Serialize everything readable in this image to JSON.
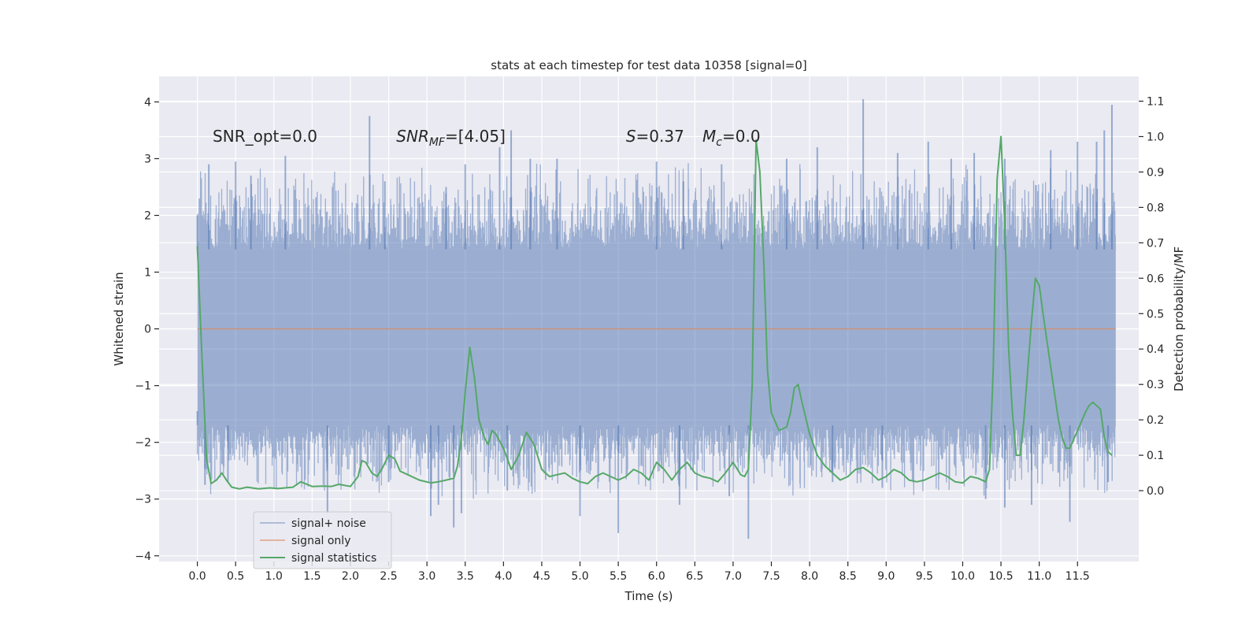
{
  "chart_data": {
    "type": "line",
    "title": "stats at each timestep for test data 10358 [signal=0]",
    "xlabel": "Time (s)",
    "ylabel": "Whitened strain",
    "ylabel_right": "Detection probability/MF",
    "xlim": [
      -0.5,
      12.3
    ],
    "ylim": [
      -4.1,
      4.45
    ],
    "ylim_right": [
      -0.2,
      1.17
    ],
    "x_ticks": [
      0.0,
      0.5,
      1.0,
      1.5,
      2.0,
      2.5,
      3.0,
      3.5,
      4.0,
      4.5,
      5.0,
      5.5,
      6.0,
      6.5,
      7.0,
      7.5,
      8.0,
      8.5,
      9.0,
      9.5,
      10.0,
      10.5,
      11.0,
      11.5
    ],
    "x_tick_labels": [
      "0.0",
      "0.5",
      "1.0",
      "1.5",
      "2.0",
      "2.5",
      "3.0",
      "3.5",
      "4.0",
      "4.5",
      "5.0",
      "5.5",
      "6.0",
      "6.5",
      "7.0",
      "7.5",
      "8.0",
      "8.5",
      "9.0",
      "9.5",
      "10.0",
      "10.5",
      "11.0",
      "11.5"
    ],
    "y_ticks": [
      -4,
      -3,
      -2,
      -1,
      0,
      1,
      2,
      3,
      4
    ],
    "y_tick_labels": [
      "−4",
      "−3",
      "−2",
      "−1",
      "0",
      "1",
      "2",
      "3",
      "4"
    ],
    "y_ticks_right": [
      0.0,
      0.1,
      0.2,
      0.3,
      0.4,
      0.5,
      0.6,
      0.7,
      0.8,
      0.9,
      1.0,
      1.1
    ],
    "y_tick_labels_right": [
      "0.0",
      "0.1",
      "0.2",
      "0.3",
      "0.4",
      "0.5",
      "0.6",
      "0.7",
      "0.8",
      "0.9",
      "1.0",
      "1.1"
    ],
    "grid": true,
    "legend_position": "lower-left",
    "annotations": [
      {
        "text": "SNR_opt=0.0",
        "x": 0.2,
        "y": 3.3
      },
      {
        "text": "SNR",
        "sub": "MF",
        "rest": "=[4.05]",
        "italic": true,
        "x": 2.6,
        "y": 3.3
      },
      {
        "text": "S",
        "rest": "=0.37",
        "italic": true,
        "x": 5.6,
        "y": 3.3
      },
      {
        "text": "M",
        "sub": "c",
        "rest": "=0.0",
        "italic": true,
        "x": 6.6,
        "y": 3.3
      }
    ],
    "series": [
      {
        "name": "signal+ noise",
        "color": "#4c72b0",
        "opacity": 0.5,
        "axis": "left",
        "kind": "noise_band",
        "x_range": [
          0.0,
          12.0
        ],
        "core_range": [
          -1.7,
          1.4
        ],
        "peaks_up": [
          [
            0.0,
            2.0
          ],
          [
            0.15,
            2.9
          ],
          [
            0.5,
            2.95
          ],
          [
            0.7,
            2.7
          ],
          [
            1.15,
            3.05
          ],
          [
            2.25,
            3.75
          ],
          [
            2.45,
            2.6
          ],
          [
            3.25,
            2.5
          ],
          [
            3.5,
            2.9
          ],
          [
            3.95,
            3.2
          ],
          [
            4.1,
            3.5
          ],
          [
            4.35,
            3.0
          ],
          [
            4.7,
            3.0
          ],
          [
            6.0,
            2.95
          ],
          [
            6.35,
            2.6
          ],
          [
            6.85,
            2.9
          ],
          [
            7.7,
            3.0
          ],
          [
            8.1,
            3.2
          ],
          [
            8.7,
            4.05
          ],
          [
            9.15,
            3.1
          ],
          [
            9.55,
            3.3
          ],
          [
            9.85,
            3.0
          ],
          [
            10.15,
            3.1
          ],
          [
            10.55,
            3.0
          ],
          [
            11.15,
            3.15
          ],
          [
            11.5,
            3.3
          ],
          [
            11.75,
            3.3
          ],
          [
            11.85,
            3.5
          ],
          [
            11.95,
            3.95
          ]
        ],
        "peaks_down": [
          [
            0.0,
            -1.45
          ],
          [
            0.1,
            -2.75
          ],
          [
            0.4,
            -2.7
          ],
          [
            1.7,
            -3.25
          ],
          [
            2.5,
            -2.7
          ],
          [
            3.05,
            -3.3
          ],
          [
            3.15,
            -3.1
          ],
          [
            3.35,
            -3.5
          ],
          [
            3.45,
            -3.25
          ],
          [
            4.05,
            -2.85
          ],
          [
            5.0,
            -3.3
          ],
          [
            5.5,
            -3.6
          ],
          [
            6.3,
            -3.1
          ],
          [
            6.95,
            -2.95
          ],
          [
            7.2,
            -3.7
          ],
          [
            8.3,
            -2.7
          ],
          [
            8.95,
            -2.8
          ],
          [
            10.3,
            -3.0
          ],
          [
            10.55,
            -3.15
          ],
          [
            10.9,
            -3.1
          ],
          [
            11.4,
            -3.4
          ],
          [
            11.9,
            -2.7
          ]
        ]
      },
      {
        "name": "signal only",
        "color": "#dd8452",
        "opacity": 0.7,
        "axis": "left",
        "x": [
          0.0,
          12.0
        ],
        "y": [
          0.0,
          0.0
        ]
      },
      {
        "name": "signal statistics",
        "color": "#55a868",
        "opacity": 1.0,
        "axis": "right",
        "x": [
          0.0,
          0.06,
          0.12,
          0.18,
          0.25,
          0.32,
          0.38,
          0.45,
          0.55,
          0.65,
          0.8,
          0.95,
          1.05,
          1.15,
          1.25,
          1.35,
          1.5,
          1.65,
          1.75,
          1.85,
          2.0,
          2.1,
          2.15,
          2.2,
          2.28,
          2.35,
          2.42,
          2.5,
          2.58,
          2.65,
          2.75,
          2.9,
          3.05,
          3.15,
          3.25,
          3.35,
          3.4,
          3.45,
          3.5,
          3.56,
          3.62,
          3.68,
          3.75,
          3.8,
          3.85,
          3.9,
          4.0,
          4.1,
          4.2,
          4.3,
          4.4,
          4.5,
          4.6,
          4.7,
          4.8,
          4.9,
          5.0,
          5.1,
          5.2,
          5.3,
          5.4,
          5.5,
          5.6,
          5.7,
          5.8,
          5.9,
          6.0,
          6.1,
          6.2,
          6.3,
          6.4,
          6.5,
          6.6,
          6.7,
          6.8,
          6.9,
          7.0,
          7.1,
          7.15,
          7.2,
          7.25,
          7.3,
          7.35,
          7.4,
          7.45,
          7.5,
          7.6,
          7.7,
          7.75,
          7.8,
          7.85,
          7.9,
          8.0,
          8.1,
          8.2,
          8.3,
          8.4,
          8.5,
          8.6,
          8.7,
          8.8,
          8.9,
          9.0,
          9.1,
          9.2,
          9.3,
          9.4,
          9.5,
          9.6,
          9.7,
          9.8,
          9.9,
          10.0,
          10.1,
          10.2,
          10.3,
          10.35,
          10.4,
          10.45,
          10.5,
          10.55,
          10.6,
          10.65,
          10.7,
          10.75,
          10.8,
          10.9,
          10.95,
          11.0,
          11.05,
          11.15,
          11.25,
          11.3,
          11.35,
          11.4,
          11.5,
          11.6,
          11.65,
          11.7,
          11.8,
          11.85,
          11.9,
          11.95
        ],
        "y": [
          0.69,
          0.38,
          0.09,
          0.02,
          0.03,
          0.05,
          0.03,
          0.01,
          0.005,
          0.01,
          0.005,
          0.008,
          0.006,
          0.008,
          0.01,
          0.025,
          0.012,
          0.013,
          0.012,
          0.018,
          0.012,
          0.04,
          0.085,
          0.08,
          0.05,
          0.04,
          0.065,
          0.1,
          0.09,
          0.055,
          0.045,
          0.03,
          0.022,
          0.025,
          0.03,
          0.035,
          0.07,
          0.15,
          0.28,
          0.405,
          0.32,
          0.2,
          0.15,
          0.13,
          0.17,
          0.16,
          0.12,
          0.06,
          0.1,
          0.165,
          0.13,
          0.06,
          0.04,
          0.045,
          0.05,
          0.035,
          0.025,
          0.02,
          0.04,
          0.05,
          0.04,
          0.03,
          0.04,
          0.06,
          0.05,
          0.03,
          0.08,
          0.06,
          0.03,
          0.06,
          0.08,
          0.05,
          0.04,
          0.035,
          0.025,
          0.05,
          0.08,
          0.045,
          0.04,
          0.06,
          0.3,
          0.99,
          0.9,
          0.65,
          0.34,
          0.22,
          0.17,
          0.18,
          0.22,
          0.29,
          0.3,
          0.25,
          0.16,
          0.1,
          0.07,
          0.05,
          0.03,
          0.04,
          0.06,
          0.065,
          0.05,
          0.03,
          0.04,
          0.06,
          0.05,
          0.03,
          0.025,
          0.03,
          0.04,
          0.05,
          0.04,
          0.025,
          0.022,
          0.04,
          0.035,
          0.025,
          0.06,
          0.35,
          0.88,
          1.0,
          0.75,
          0.4,
          0.22,
          0.1,
          0.1,
          0.2,
          0.48,
          0.6,
          0.58,
          0.5,
          0.35,
          0.2,
          0.15,
          0.12,
          0.12,
          0.17,
          0.22,
          0.24,
          0.25,
          0.23,
          0.15,
          0.11,
          0.1
        ],
        "peak_ends": [
          0.95,
          1.0
        ]
      }
    ]
  }
}
